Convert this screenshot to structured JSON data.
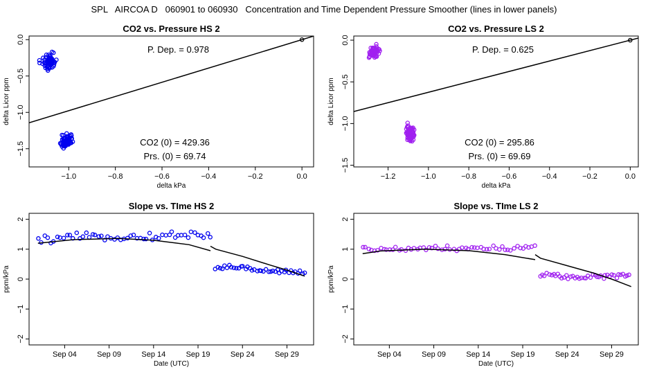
{
  "main_title": "SPL   AIRCOA D   060901 to 060930   Concentration and Time Dependent Pressure Smoother (lines in lower panels)",
  "colors": {
    "hs": "#0000ee",
    "ls": "#a020f0",
    "line": "#000000"
  },
  "chart_data": [
    {
      "id": "hs-pressure",
      "type": "scatter",
      "title": "CO2 vs. Pressure HS 2",
      "xlabel": "delta kPa",
      "ylabel": "delta Licor ppm",
      "xlim": [
        -1.17,
        0.05
      ],
      "ylim": [
        -1.75,
        0.05
      ],
      "xticks": [
        -1.0,
        -0.8,
        -0.6,
        -0.4,
        -0.2,
        0.0
      ],
      "xtick_labels": [
        "−1.0",
        "−0.8",
        "−0.6",
        "−0.4",
        "−0.2",
        "0.0"
      ],
      "yticks": [
        0.0,
        -0.5,
        -1.0,
        -1.5
      ],
      "ytick_labels": [
        "0.0",
        "−0.5",
        "−1.0",
        "−1.5"
      ],
      "annotations": {
        "p_dep": "P. Dep. =  0.978",
        "co2_0": "CO2 (0) =  429.36",
        "prs_0": "Prs. (0) =  69.74"
      },
      "fit_line": {
        "x": [
          -1.17,
          0.05
        ],
        "y": [
          -1.143,
          0.049
        ]
      },
      "origin_point": [
        0.0,
        0.0
      ],
      "clusters": [
        {
          "x_center": -1.085,
          "x_spread": 0.045,
          "y_center": -0.3,
          "y_spread": 0.16,
          "n": 60
        },
        {
          "x_center": -1.01,
          "x_spread": 0.04,
          "y_center": -1.4,
          "y_spread": 0.14,
          "n": 70
        }
      ],
      "point_color": "#0000ee"
    },
    {
      "id": "ls-pressure",
      "type": "scatter",
      "title": "CO2 vs. Pressure LS 2",
      "xlabel": "delta kPa",
      "ylabel": "delta Licor ppm",
      "xlim": [
        -1.37,
        0.04
      ],
      "ylim": [
        -1.52,
        0.05
      ],
      "xticks": [
        -1.2,
        -1.0,
        -0.8,
        -0.6,
        -0.4,
        -0.2,
        0.0
      ],
      "xtick_labels": [
        "−1.2",
        "−1.0",
        "−0.8",
        "−0.6",
        "−0.4",
        "−0.2",
        "0.0"
      ],
      "yticks": [
        0.0,
        -0.5,
        -1.0,
        -1.5
      ],
      "ytick_labels": [
        "0.0",
        "−0.5",
        "−1.0",
        "−1.5"
      ],
      "annotations": {
        "p_dep": "P. Dep. =  0.625",
        "co2_0": "CO2 (0) =  295.86",
        "prs_0": "Prs. (0) =  69.69"
      },
      "fit_line": {
        "x": [
          -1.37,
          0.04
        ],
        "y": [
          -0.856,
          0.025
        ]
      },
      "origin_point": [
        0.0,
        0.0
      ],
      "clusters": [
        {
          "x_center": -1.27,
          "x_spread": 0.04,
          "y_center": -0.15,
          "y_spread": 0.12,
          "n": 50
        },
        {
          "x_center": -1.09,
          "x_spread": 0.03,
          "y_center": -1.12,
          "y_spread": 0.14,
          "n": 80
        }
      ],
      "point_color": "#a020f0"
    },
    {
      "id": "hs-time",
      "type": "scatter",
      "title": "Slope vs. TIme HS 2",
      "xlabel": "Date (UTC)",
      "ylabel": "ppm/kPa",
      "xlim": [
        0.0,
        32.0
      ],
      "ylim": [
        -2.2,
        2.2
      ],
      "xticks": [
        4,
        9,
        14,
        19,
        24,
        29
      ],
      "xtick_labels": [
        "Sep 04",
        "Sep 09",
        "Sep 14",
        "Sep 19",
        "Sep 24",
        "Sep 29"
      ],
      "yticks": [
        2,
        1,
        0,
        -1,
        -2
      ],
      "ytick_labels": [
        "2",
        "1",
        "0",
        "−1",
        "−2"
      ],
      "smoother": [
        {
          "x": [
            1.0,
            5.0,
            10.0,
            14.0,
            18.0,
            20.4
          ],
          "y": [
            1.2,
            1.32,
            1.36,
            1.3,
            1.15,
            0.95
          ]
        },
        {
          "x": [
            20.4,
            21.0,
            24.0,
            27.0,
            29.0,
            31.0
          ],
          "y": [
            1.1,
            1.0,
            0.76,
            0.48,
            0.3,
            0.1
          ]
        }
      ],
      "segments": [
        {
          "x_start": 1.0,
          "x_end": 20.4,
          "base": [
            1.3,
            1.4,
            1.42,
            1.38,
            1.45,
            1.5
          ],
          "scatter": 0.11,
          "n": 55
        },
        {
          "x_start": 21.0,
          "x_end": 31.0,
          "base": [
            0.35,
            0.42,
            0.33,
            0.28,
            0.25,
            0.22
          ],
          "scatter": 0.07,
          "n": 40
        }
      ],
      "point_color": "#0000ee"
    },
    {
      "id": "ls-time",
      "type": "scatter",
      "title": "Slope vs. TIme LS 2",
      "xlabel": "Date (UTC)",
      "ylabel": "ppm/kPa",
      "xlim": [
        0.0,
        32.0
      ],
      "ylim": [
        -2.2,
        2.2
      ],
      "xticks": [
        4,
        9,
        14,
        19,
        24,
        29
      ],
      "xtick_labels": [
        "Sep 04",
        "Sep 09",
        "Sep 14",
        "Sep 19",
        "Sep 24",
        "Sep 29"
      ],
      "yticks": [
        2,
        1,
        0,
        -1,
        -2
      ],
      "ytick_labels": [
        "2",
        "1",
        "0",
        "−1",
        "−2"
      ],
      "smoother": [
        {
          "x": [
            1.0,
            3.0,
            8.0,
            13.0,
            17.0,
            20.4
          ],
          "y": [
            0.85,
            0.94,
            1.0,
            0.95,
            0.82,
            0.65
          ]
        },
        {
          "x": [
            20.4,
            21.0,
            24.0,
            27.0,
            29.0,
            31.2
          ],
          "y": [
            0.82,
            0.7,
            0.45,
            0.2,
            0.0,
            -0.25
          ]
        }
      ],
      "segments": [
        {
          "x_start": 1.0,
          "x_end": 20.4,
          "base": [
            1.0,
            0.98,
            1.03,
            1.0,
            1.02,
            1.08
          ],
          "scatter": 0.08,
          "n": 58
        },
        {
          "x_start": 21.0,
          "x_end": 31.0,
          "base": [
            0.12,
            0.1,
            0.06,
            0.08,
            0.1,
            0.12
          ],
          "scatter": 0.07,
          "n": 42
        }
      ],
      "point_color": "#a020f0"
    }
  ]
}
